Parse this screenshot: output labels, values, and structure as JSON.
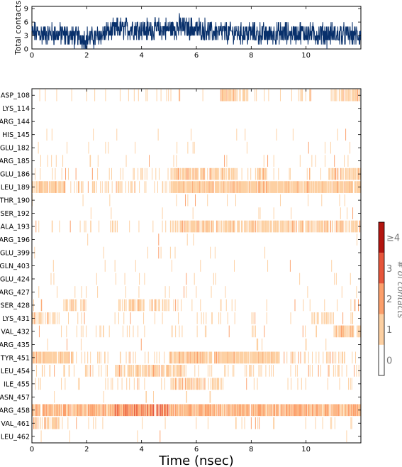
{
  "chart_data": [
    {
      "type": "line",
      "xlabel": "",
      "ylabel": "Total contacts",
      "xlim": [
        0,
        12
      ],
      "ylim": [
        0,
        9.5
      ],
      "x_ticks": [
        "0",
        "2",
        "4",
        "6",
        "8",
        "10"
      ],
      "y_ticks": [
        "0",
        "3",
        "6",
        "9"
      ],
      "color": "#08306b",
      "segments": [
        {
          "x": [
            0.0,
            0.5,
            1.0,
            1.5,
            2.0,
            2.4,
            2.8,
            3.3,
            3.8,
            4.2,
            4.7,
            5.1,
            5.4,
            5.8,
            6.3,
            6.8,
            7.3,
            7.8,
            8.3,
            8.8,
            9.3,
            9.8,
            10.3,
            10.8,
            11.3,
            11.8
          ],
          "mean": [
            3.5,
            3.4,
            3.3,
            2.9,
            2.4,
            2.7,
            4.0,
            4.5,
            4.6,
            4.3,
            4.2,
            4.6,
            5.0,
            4.6,
            4.2,
            3.7,
            3.6,
            3.6,
            3.3,
            3.3,
            3.5,
            3.6,
            3.4,
            3.2,
            3.1,
            3.0
          ]
        }
      ]
    },
    {
      "type": "heatmap",
      "xlabel": "Time (nsec)",
      "ylabel": "",
      "xlim": [
        0,
        12
      ],
      "x_ticks": [
        "0",
        "2",
        "4",
        "6",
        "8",
        "10"
      ],
      "residues": [
        "ASP_108",
        "LYS_114",
        "ARG_144",
        "HIS_145",
        "GLU_182",
        "ARG_185",
        "GLU_186",
        "LEU_189",
        "THR_190",
        "SER_192",
        "ALA_193",
        "ARG_196",
        "GLU_399",
        "GLN_403",
        "GLU_424",
        "ARG_427",
        "SER_428",
        "LYS_431",
        "VAL_432",
        "ARG_435",
        "TYR_451",
        "LEU_454",
        "ILE_455",
        "ASN_457",
        "ARG_458",
        "VAL_461",
        "LEU_462"
      ],
      "colorbar": {
        "label": "# of contacts",
        "ticks": [
          "0",
          "1",
          "2",
          "3",
          "≥4"
        ],
        "colors": [
          "#ffffff",
          "#fdd0a2",
          "#fc9f6b",
          "#e6553a",
          "#b3150f"
        ]
      },
      "occupancy": [
        {
          "residue": "ASP_108",
          "density": 0.15,
          "level": 1,
          "dense_ranges": [
            [
              6.8,
              7.9
            ],
            [
              10.9,
              12.0
            ]
          ]
        },
        {
          "residue": "LYS_114",
          "density": 0.0,
          "level": 1,
          "dense_ranges": []
        },
        {
          "residue": "ARG_144",
          "density": 0.0,
          "level": 1,
          "dense_ranges": []
        },
        {
          "residue": "HIS_145",
          "density": 0.03,
          "level": 1,
          "dense_ranges": []
        },
        {
          "residue": "GLU_182",
          "density": 0.03,
          "level": 1,
          "dense_ranges": []
        },
        {
          "residue": "ARG_185",
          "density": 0.06,
          "level": 1,
          "dense_ranges": []
        },
        {
          "residue": "GLU_186",
          "density": 0.18,
          "level": 1,
          "dense_ranges": [
            [
              5.0,
              7.5
            ],
            [
              8.2,
              8.6
            ],
            [
              10.8,
              12.0
            ]
          ]
        },
        {
          "residue": "LEU_189",
          "density": 0.38,
          "level": 1,
          "dense_ranges": [
            [
              0.0,
              1.2
            ],
            [
              5.0,
              12.0
            ]
          ]
        },
        {
          "residue": "THR_190",
          "density": 0.03,
          "level": 1,
          "dense_ranges": []
        },
        {
          "residue": "SER_192",
          "density": 0.02,
          "level": 1,
          "dense_ranges": []
        },
        {
          "residue": "ALA_193",
          "density": 0.18,
          "level": 1,
          "dense_ranges": [
            [
              5.0,
              12.0
            ]
          ]
        },
        {
          "residue": "ARG_196",
          "density": 0.02,
          "level": 1,
          "dense_ranges": []
        },
        {
          "residue": "GLU_399",
          "density": 0.02,
          "level": 1,
          "dense_ranges": []
        },
        {
          "residue": "GLN_403",
          "density": 0.02,
          "level": 1,
          "dense_ranges": []
        },
        {
          "residue": "GLU_424",
          "density": 0.04,
          "level": 1,
          "dense_ranges": []
        },
        {
          "residue": "ARG_427",
          "density": 0.06,
          "level": 1,
          "dense_ranges": []
        },
        {
          "residue": "SER_428",
          "density": 0.1,
          "level": 1,
          "dense_ranges": [
            [
              1.2,
              2.0
            ],
            [
              3.1,
              5.0
            ]
          ]
        },
        {
          "residue": "LYS_431",
          "density": 0.1,
          "level": 1,
          "dense_ranges": [
            [
              0.0,
              1.0
            ],
            [
              10.2,
              11.0
            ]
          ]
        },
        {
          "residue": "VAL_432",
          "density": 0.12,
          "level": 1,
          "dense_ranges": [
            [
              11.0,
              12.0
            ]
          ]
        },
        {
          "residue": "ARG_435",
          "density": 0.03,
          "level": 1,
          "dense_ranges": [
            [
              8.2,
              8.5
            ]
          ]
        },
        {
          "residue": "TYR_451",
          "density": 0.35,
          "level": 1,
          "dense_ranges": [
            [
              0.0,
              1.5
            ],
            [
              5.0,
              9.0
            ]
          ]
        },
        {
          "residue": "LEU_454",
          "density": 0.18,
          "level": 1,
          "dense_ranges": [
            [
              3.0,
              5.5
            ]
          ]
        },
        {
          "residue": "ILE_455",
          "density": 0.12,
          "level": 1,
          "dense_ranges": [
            [
              5.0,
              7.0
            ]
          ]
        },
        {
          "residue": "ASN_457",
          "density": 0.01,
          "level": 1,
          "dense_ranges": []
        },
        {
          "residue": "ARG_458",
          "density": 0.8,
          "level": 2,
          "dense_ranges": [
            [
              0.0,
              12.0
            ]
          ],
          "peak_range": [
            3.0,
            5.0
          ]
        },
        {
          "residue": "VAL_461",
          "density": 0.08,
          "level": 1,
          "dense_ranges": [
            [
              0.0,
              1.2
            ]
          ]
        },
        {
          "residue": "LEU_462",
          "density": 0.01,
          "level": 1,
          "dense_ranges": []
        }
      ]
    }
  ]
}
